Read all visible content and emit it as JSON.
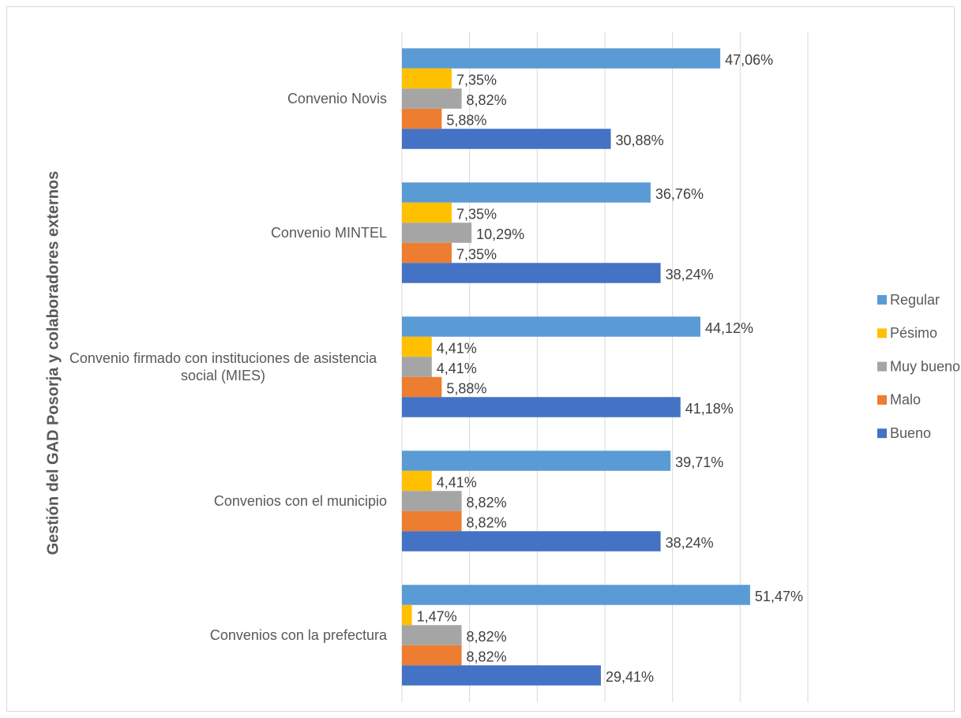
{
  "chart_data": {
    "type": "bar",
    "y_label": "Gestión del GAD Posorja y colaboradores externos",
    "categories": [
      "Convenio Novis",
      "Convenio MINTEL",
      "Convenio firmado con instituciones de asistencia social (MIES)",
      "Convenios con el municipio",
      "Convenios con la prefectura"
    ],
    "series": [
      {
        "name": "Regular",
        "color": "#5b9bd5",
        "values": [
          47.06,
          36.76,
          44.12,
          39.71,
          51.47
        ],
        "value_labels": [
          "47,06%",
          "36,76%",
          "44,12%",
          "39,71%",
          "51,47%"
        ]
      },
      {
        "name": "Pésimo",
        "color": "#ffc000",
        "values": [
          7.35,
          7.35,
          4.41,
          4.41,
          1.47
        ],
        "value_labels": [
          "7,35%",
          "7,35%",
          "4,41%",
          "4,41%",
          "1,47%"
        ]
      },
      {
        "name": "Muy bueno",
        "color": "#a5a5a5",
        "values": [
          8.82,
          10.29,
          4.41,
          8.82,
          8.82
        ],
        "value_labels": [
          "8,82%",
          "10,29%",
          "4,41%",
          "8,82%",
          "8,82%"
        ]
      },
      {
        "name": "Malo",
        "color": "#ed7d31",
        "values": [
          5.88,
          7.35,
          5.88,
          8.82,
          8.82
        ],
        "value_labels": [
          "5,88%",
          "7,35%",
          "5,88%",
          "8,82%",
          "8,82%"
        ]
      },
      {
        "name": "Bueno",
        "color": "#4472c4",
        "values": [
          30.88,
          38.24,
          41.18,
          38.24,
          29.41
        ],
        "value_labels": [
          "30,88%",
          "38,24%",
          "41,18%",
          "38,24%",
          "29,41%"
        ]
      }
    ],
    "xlim": [
      0,
      60
    ],
    "xticks": [
      0,
      10,
      20,
      30,
      40,
      50,
      60
    ],
    "grid": true,
    "legend": "right"
  }
}
